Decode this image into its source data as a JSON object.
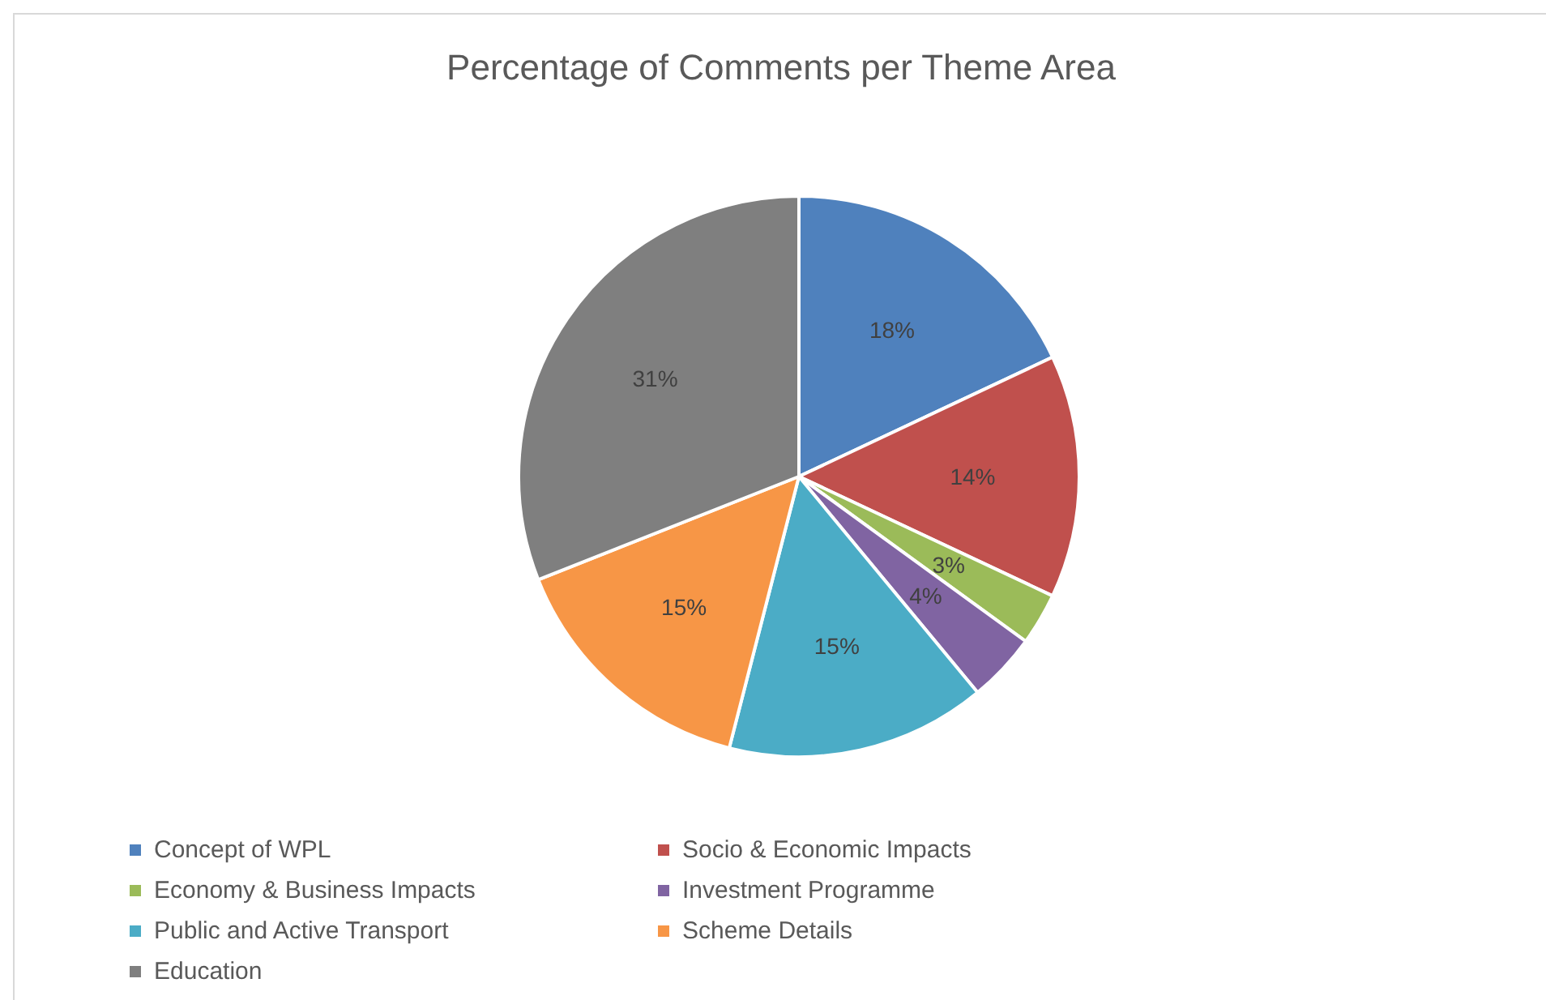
{
  "chart_data": {
    "type": "pie",
    "title": "Percentage of Comments per Theme Area",
    "categories": [
      "Concept of WPL",
      "Socio & Economic Impacts",
      "Economy & Business Impacts",
      "Investment Programme",
      "Public and Active Transport",
      "Scheme Details",
      "Education"
    ],
    "values": [
      18,
      14,
      3,
      4,
      15,
      15,
      31
    ],
    "value_labels": [
      "18%",
      "14%",
      "3%",
      "4%",
      "15%",
      "15%",
      "31%"
    ],
    "colors": [
      "#4f81bd",
      "#c0504d",
      "#9bbb59",
      "#8064a2",
      "#4bacc6",
      "#f79646",
      "#7f7f7f"
    ],
    "legend": "bottom"
  }
}
